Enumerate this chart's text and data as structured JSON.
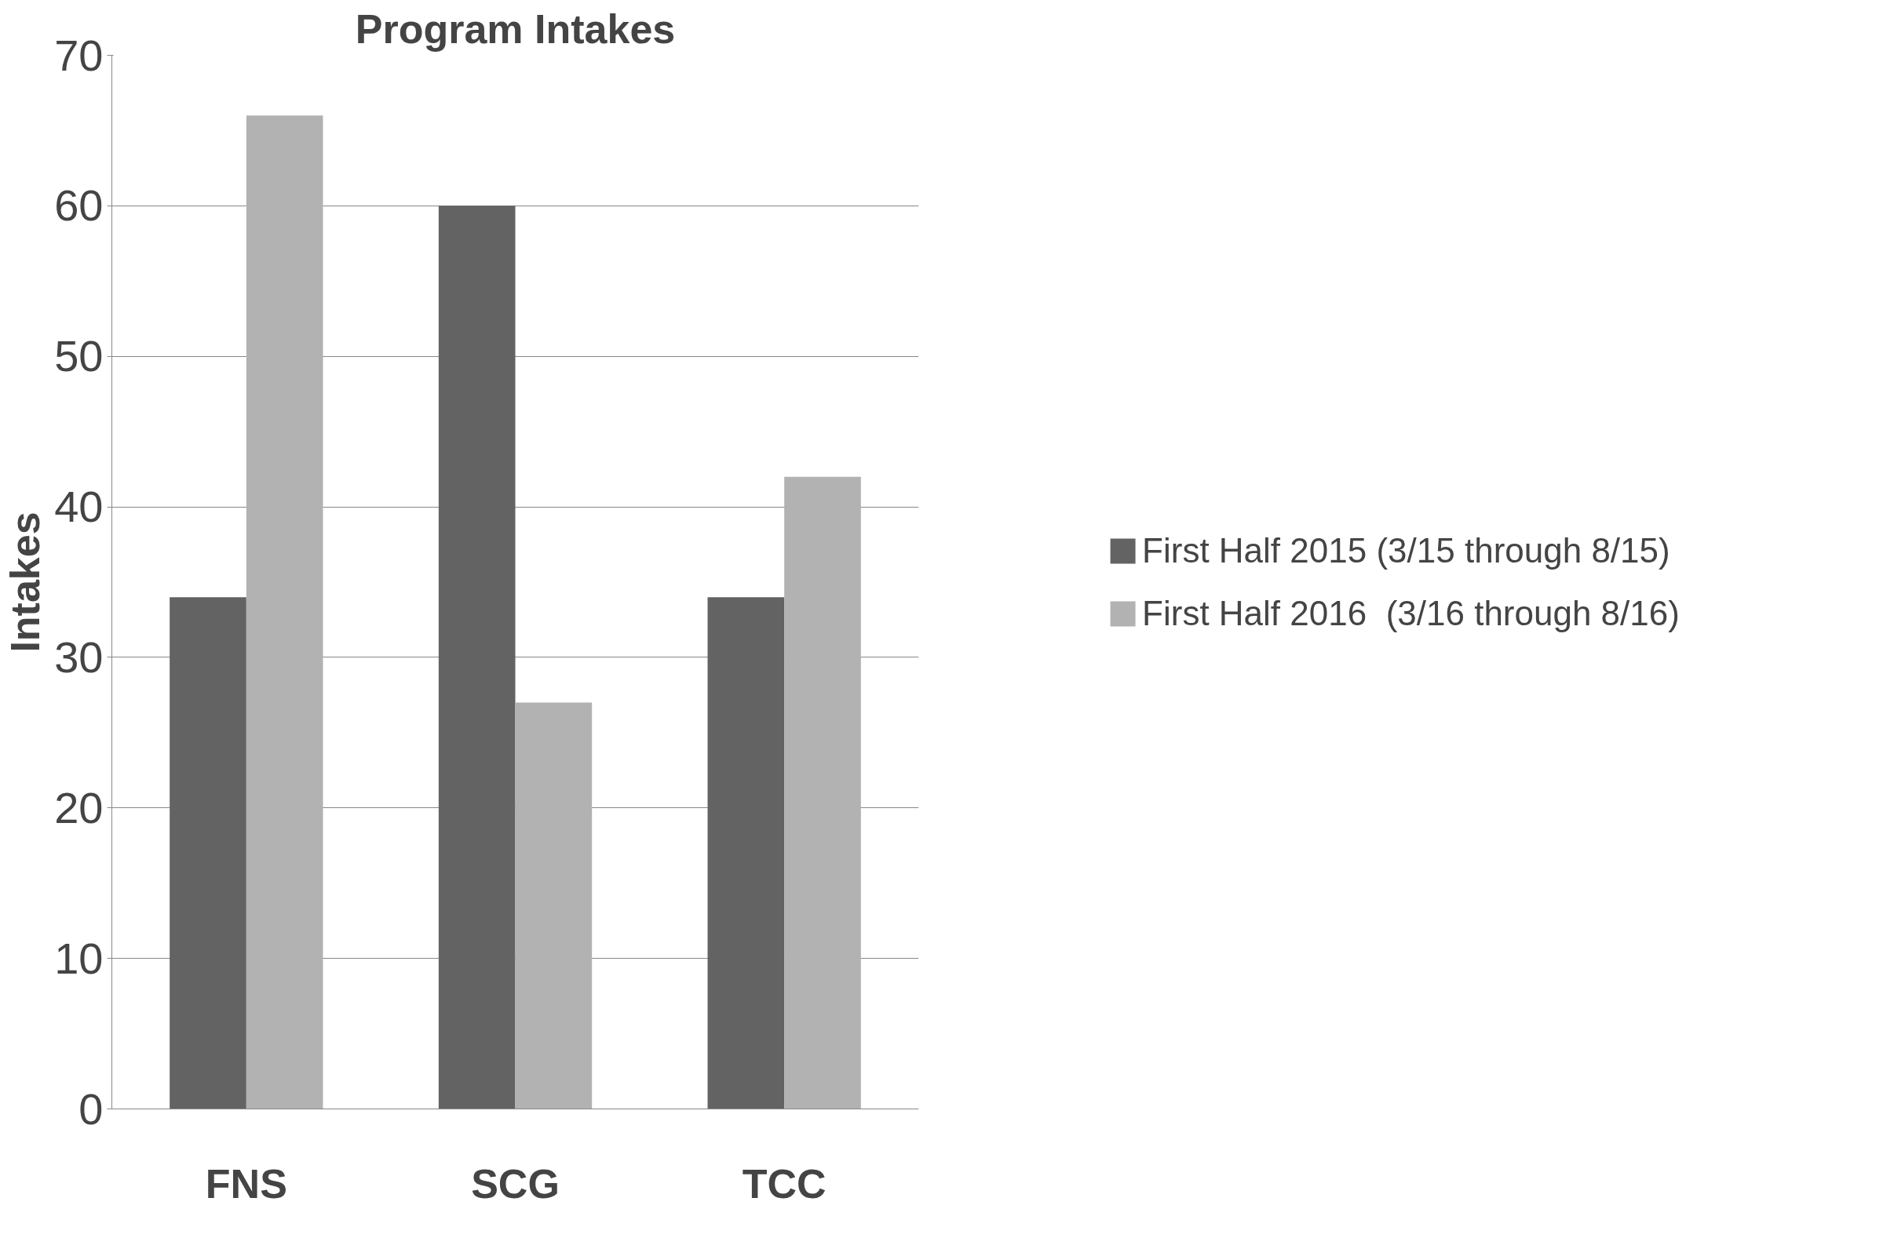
{
  "chart_data": {
    "type": "bar",
    "title": "Program Intakes",
    "ylabel": "Intakes",
    "categories": [
      "FNS",
      "SCG",
      "TCC"
    ],
    "series": [
      {
        "name": "First Half 2015 (3/15 through 8/15)",
        "color": "#636363",
        "values": [
          34,
          60,
          34
        ]
      },
      {
        "name": "First Half 2016  (3/16 through 8/16)",
        "color": "#b2b2b2",
        "values": [
          66,
          27,
          42
        ]
      }
    ],
    "ylim": [
      0,
      70
    ],
    "yticks": [
      0,
      10,
      20,
      30,
      40,
      50,
      60,
      70
    ],
    "grid": "y",
    "legend": "right"
  }
}
